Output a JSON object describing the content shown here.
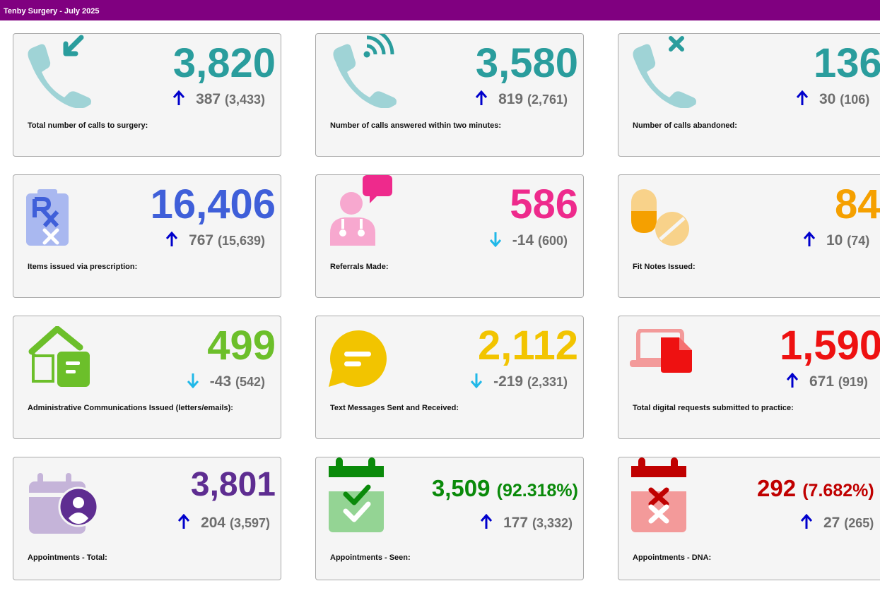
{
  "header": {
    "title": "Tenby Surgery - July 2025"
  },
  "colors": {
    "header_bg": "#800080",
    "teal": "#2a9d9d",
    "teal_light": "#9fd3d6",
    "blue": "#3f5fd9",
    "pink": "#ee2a8c",
    "orange": "#f5a000",
    "green": "#6cbf2a",
    "yellow": "#f2c400",
    "red": "#ee1111",
    "purple": "#5e2d91",
    "dark_green": "#0a8a0a",
    "dark_red": "#c00000",
    "arrow_up": "#0000cc",
    "arrow_down": "#20b8e8"
  },
  "cards": [
    {
      "label": "Total number of calls to surgery:",
      "value": "3,820",
      "change": "387",
      "previous": "(3,433)",
      "direction": "up",
      "icon": "phone-incoming-icon"
    },
    {
      "label": "Number of calls answered within two minutes:",
      "value": "3,580",
      "change": "819",
      "previous": "(2,761)",
      "direction": "up",
      "icon": "phone-answered-icon"
    },
    {
      "label": "Number of calls abandoned:",
      "value": "136",
      "change": "30",
      "previous": "(106)",
      "direction": "up",
      "icon": "phone-abandoned-icon"
    },
    {
      "label": "Items issued via prescription:",
      "value": "16,406",
      "change": "767",
      "previous": "(15,639)",
      "direction": "up",
      "icon": "prescription-icon"
    },
    {
      "label": "Referrals Made:",
      "value": "586",
      "change": "-14",
      "previous": "(600)",
      "direction": "down",
      "icon": "doctor-referral-icon"
    },
    {
      "label": "Fit Notes Issued:",
      "value": "84",
      "change": "10",
      "previous": "(74)",
      "direction": "up",
      "icon": "pills-icon"
    },
    {
      "label": "Administrative Communications Issued (letters/emails):",
      "value": "499",
      "change": "-43",
      "previous": "(542)",
      "direction": "down",
      "icon": "house-letter-icon"
    },
    {
      "label": "Text Messages Sent and Received:",
      "value": "2,112",
      "change": "-219",
      "previous": "(2,331)",
      "direction": "down",
      "icon": "chat-bubble-icon"
    },
    {
      "label": "Total digital requests submitted to practice:",
      "value": "1,590",
      "change": "671",
      "previous": "(919)",
      "direction": "up",
      "icon": "laptop-document-icon"
    },
    {
      "label": "Appointments - Total:",
      "value": "3,801",
      "change": "204",
      "previous": "(3,597)",
      "direction": "up",
      "icon": "calendar-person-icon"
    },
    {
      "label": "Appointments - Seen:",
      "value": "3,509",
      "pct": "(92.318%)",
      "change": "177",
      "previous": "(3,332)",
      "direction": "up",
      "icon": "calendar-check-icon"
    },
    {
      "label": "Appointments - DNA:",
      "value": "292",
      "pct": "(7.682%)",
      "change": "27",
      "previous": "(265)",
      "direction": "up",
      "icon": "calendar-cross-icon"
    }
  ]
}
